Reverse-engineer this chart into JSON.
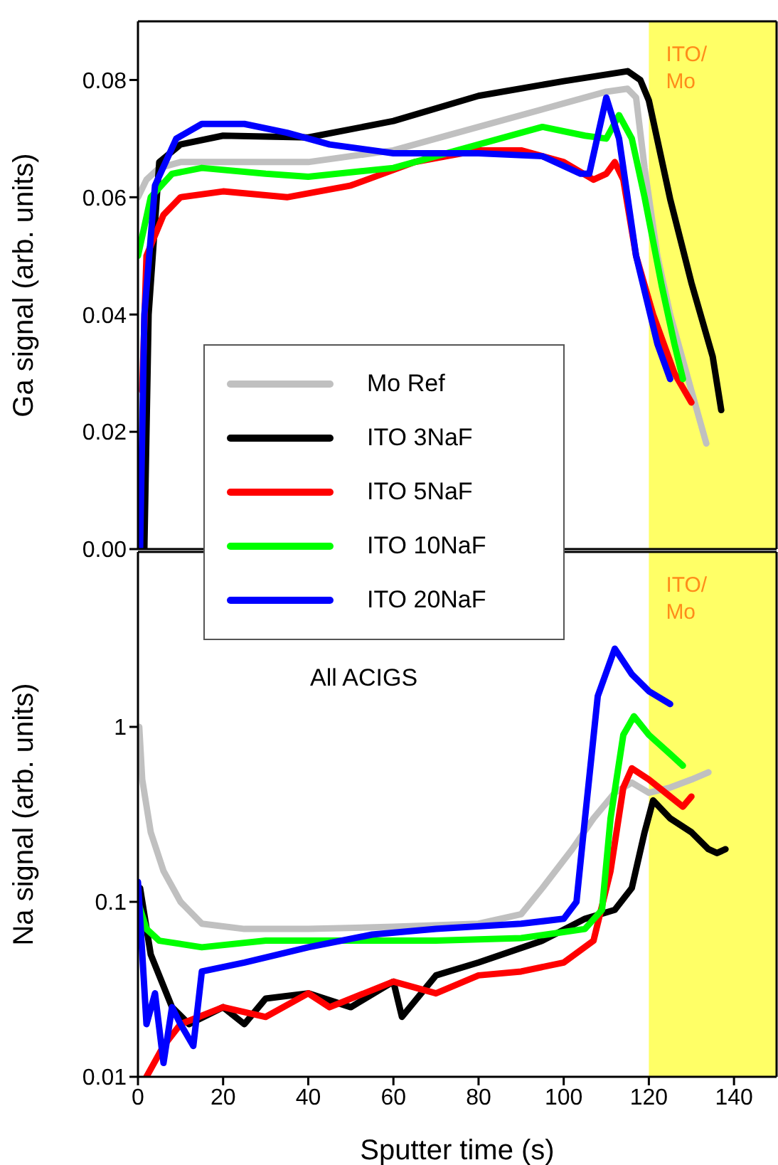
{
  "chart_data": [
    {
      "type": "line",
      "ylabel": "Ga signal (arb. units)",
      "xlim": [
        0,
        150
      ],
      "xticks": [
        0,
        20,
        40,
        60,
        80,
        100,
        120,
        140
      ],
      "ylim": [
        0,
        0.09
      ],
      "yticks": [
        {
          "value": 0,
          "label": "0.00"
        },
        0.02,
        0.04,
        0.06,
        0.08
      ],
      "tick_labels": "y",
      "legend": "bottom left",
      "grid": false,
      "bands": [
        {
          "axis": "x",
          "from": 120,
          "to": 150,
          "label": "ITO/\nMo",
          "color": "#ffff66"
        }
      ],
      "series": [
        {
          "name": "Mo Ref",
          "color": "#c0c0c0",
          "x": [
            0,
            2,
            5,
            10,
            20,
            40,
            60,
            80,
            100,
            110,
            115,
            117,
            119,
            122,
            125,
            130,
            133.5
          ],
          "values": [
            0.06,
            0.063,
            0.065,
            0.066,
            0.066,
            0.066,
            0.068,
            0.072,
            0.076,
            0.078,
            0.0785,
            0.077,
            0.065,
            0.05,
            0.04,
            0.027,
            0.018
          ]
        },
        {
          "name": "ITO 3NaF",
          "color": "#000000",
          "x": [
            1.5,
            2.5,
            5,
            10,
            20,
            40,
            60,
            80,
            100,
            115,
            118,
            120,
            125,
            130,
            135,
            137
          ],
          "values": [
            0,
            0.04,
            0.066,
            0.069,
            0.0705,
            0.0702,
            0.073,
            0.0773,
            0.0798,
            0.0815,
            0.08,
            0.0765,
            0.0597,
            0.0454,
            0.0328,
            0.0237
          ]
        },
        {
          "name": "ITO 5NaF",
          "color": "#ff0000",
          "x": [
            1,
            2,
            6,
            10,
            20,
            35,
            50,
            65,
            80,
            90,
            100,
            107,
            110,
            112,
            114,
            117,
            121,
            126,
            130
          ],
          "values": [
            0.027,
            0.05,
            0.057,
            0.06,
            0.061,
            0.06,
            0.062,
            0.066,
            0.068,
            0.068,
            0.066,
            0.063,
            0.064,
            0.066,
            0.063,
            0.05,
            0.04,
            0.03,
            0.025
          ]
        },
        {
          "name": "ITO 10NaF",
          "color": "#00ff00",
          "x": [
            0,
            3,
            8,
            15,
            30,
            40,
            60,
            80,
            95,
            105,
            110,
            113,
            116,
            119,
            123,
            126,
            128
          ],
          "values": [
            0.05,
            0.06,
            0.064,
            0.065,
            0.064,
            0.0635,
            0.065,
            0.069,
            0.072,
            0.0705,
            0.07,
            0.074,
            0.07,
            0.06,
            0.045,
            0.035,
            0.029
          ]
        },
        {
          "name": "ITO 20NaF",
          "color": "#0000ff",
          "x": [
            0.5,
            1.5,
            4,
            9,
            15,
            25,
            35,
            45,
            60,
            80,
            95,
            104,
            106,
            110,
            113,
            117,
            122,
            125
          ],
          "values": [
            0,
            0.04,
            0.062,
            0.07,
            0.0725,
            0.0725,
            0.071,
            0.069,
            0.0675,
            0.0675,
            0.067,
            0.064,
            0.064,
            0.077,
            0.07,
            0.05,
            0.035,
            0.029
          ]
        }
      ]
    },
    {
      "type": "line",
      "xlabel": "Sputter time (s)",
      "ylabel": "Na signal (arb. units)",
      "xlim": [
        0,
        150
      ],
      "xticks": [
        0,
        20,
        40,
        60,
        80,
        100,
        120,
        140
      ],
      "ylim": [
        0.01,
        10
      ],
      "yticks": [
        0.01,
        0.1,
        1
      ],
      "log": "y",
      "grid": false,
      "annotations": [
        "All ACIGS"
      ],
      "bands": [
        {
          "axis": "x",
          "from": 120,
          "to": 150,
          "label": "ITO/\nMo",
          "color": "#ffff66"
        }
      ],
      "series": [
        {
          "color": "#c0c0c0",
          "x": [
            0.3,
            1,
            3,
            6,
            10,
            15,
            25,
            40,
            60,
            80,
            90,
            95,
            102,
            107,
            112,
            116,
            120,
            125,
            130,
            134
          ],
          "values": [
            1.0,
            0.5,
            0.25,
            0.15,
            0.1,
            0.075,
            0.07,
            0.07,
            0.072,
            0.075,
            0.085,
            0.12,
            0.2,
            0.3,
            0.42,
            0.48,
            0.42,
            0.45,
            0.5,
            0.55
          ]
        },
        {
          "color": "#000000",
          "x": [
            0.5,
            3,
            8,
            12,
            20,
            25,
            30,
            40,
            50,
            60,
            62,
            70,
            80,
            95,
            105,
            112,
            116,
            119,
            121,
            125,
            130,
            134,
            136,
            138
          ],
          "values": [
            0.12,
            0.05,
            0.025,
            0.02,
            0.025,
            0.02,
            0.028,
            0.03,
            0.025,
            0.035,
            0.022,
            0.038,
            0.045,
            0.06,
            0.08,
            0.09,
            0.12,
            0.25,
            0.38,
            0.3,
            0.25,
            0.2,
            0.19,
            0.2
          ]
        },
        {
          "color": "#ff0000",
          "x": [
            2,
            6,
            10,
            20,
            30,
            40,
            45,
            60,
            70,
            80,
            90,
            100,
            107,
            111,
            114,
            116,
            120,
            125,
            128,
            130
          ],
          "values": [
            0.01,
            0.015,
            0.02,
            0.025,
            0.022,
            0.03,
            0.025,
            0.035,
            0.03,
            0.038,
            0.04,
            0.045,
            0.06,
            0.15,
            0.45,
            0.58,
            0.5,
            0.4,
            0.35,
            0.4
          ]
        },
        {
          "color": "#00ff00",
          "x": [
            0,
            2,
            5,
            15,
            30,
            50,
            70,
            90,
            105,
            109,
            111,
            114,
            116.5,
            120,
            125,
            128
          ],
          "values": [
            0.1,
            0.07,
            0.06,
            0.055,
            0.06,
            0.06,
            0.06,
            0.062,
            0.07,
            0.09,
            0.3,
            0.9,
            1.15,
            0.9,
            0.7,
            0.6
          ]
        },
        {
          "color": "#0000ff",
          "x": [
            0,
            2,
            4,
            6,
            8,
            10,
            13,
            15,
            25,
            40,
            55,
            70,
            90,
            100,
            103,
            105,
            108,
            112,
            116,
            120,
            125
          ],
          "values": [
            0.13,
            0.02,
            0.03,
            0.012,
            0.025,
            0.02,
            0.015,
            0.04,
            0.045,
            0.055,
            0.065,
            0.07,
            0.075,
            0.08,
            0.1,
            0.3,
            1.5,
            2.8,
            2.0,
            1.6,
            1.35
          ]
        }
      ]
    }
  ]
}
